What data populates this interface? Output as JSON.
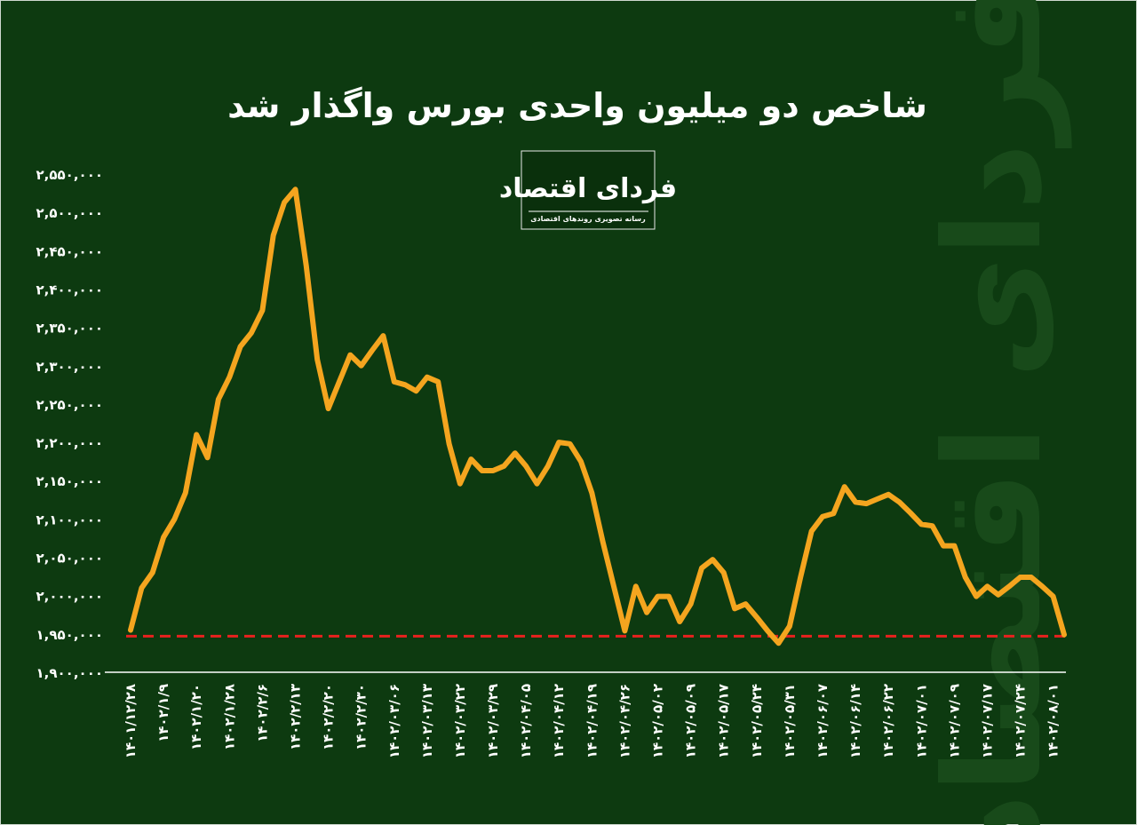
{
  "chart_data": {
    "type": "line",
    "title": "شاخص دو میلیون واحدی بورس واگذار شد",
    "logo": {
      "name": "فردای اقتصاد",
      "tagline": "رسانه تصویری روندهای اقتصادی"
    },
    "categories": [
      "۱۴۰۱/۱۲/۲۸",
      null,
      null,
      "۱۴۰۲/۱/۹",
      null,
      null,
      "۱۴۰۲/۱/۲۰",
      null,
      null,
      "۱۴۰۲/۱/۲۸",
      null,
      null,
      "۱۴۰۲/۲/۶",
      null,
      null,
      "۱۴۰۲/۲/۱۳",
      null,
      null,
      "۱۴۰۲/۲/۲۰",
      null,
      null,
      "۱۴۰۲/۲/۳۰",
      null,
      null,
      "۱۴۰۲/۰۳/۰۶",
      null,
      null,
      "۱۴۰۲/۰۳/۱۳",
      null,
      null,
      "۱۴۰۲/۰۳/۲۲",
      null,
      null,
      "۱۴۰۲/۰۳/۲۹",
      null,
      null,
      "۱۴۰۲/۰۴/۰۵",
      null,
      null,
      "۱۴۰۲/۰۴/۱۲",
      null,
      null,
      "۱۴۰۲/۰۴/۱۹",
      null,
      null,
      "۱۴۰۲/۰۴/۲۶",
      null,
      null,
      "۱۴۰۲/۰۵/۰۲",
      null,
      null,
      "۱۴۰۲/۰۵/۰۹",
      null,
      null,
      "۱۴۰۲/۰۵/۱۷",
      null,
      null,
      "۱۴۰۲/۰۵/۲۴",
      null,
      null,
      "۱۴۰۲/۰۵/۳۱",
      null,
      null,
      "۱۴۰۲/۰۶/۰۷",
      null,
      null,
      "۱۴۰۲/۰۶/۱۴",
      null,
      null,
      "۱۴۰۲/۰۶/۲۲",
      null,
      null,
      "۱۴۰۲/۰۷/۰۱",
      null,
      null,
      "۱۴۰۲/۰۷/۰۹",
      null,
      null,
      "۱۴۰۲/۰۷/۱۷",
      null,
      null,
      "۱۴۰۲/۰۷/۲۴",
      null,
      null,
      "۱۴۰۲/۰۸/۰۱",
      null
    ],
    "values": [
      1955000,
      2010000,
      2030000,
      2076000,
      2100000,
      2134000,
      2210000,
      2180000,
      2256000,
      2285000,
      2325000,
      2343000,
      2372000,
      2470000,
      2513000,
      2530000,
      2430000,
      2308000,
      2244000,
      2279000,
      2314000,
      2300000,
      2320000,
      2339000,
      2279000,
      2275000,
      2267000,
      2285000,
      2279000,
      2198000,
      2146000,
      2178000,
      2163000,
      2163000,
      2169000,
      2186000,
      2169000,
      2146000,
      2169000,
      2200000,
      2198000,
      2175000,
      2134000,
      2070000,
      2012000,
      1954000,
      2012000,
      1978000,
      1999000,
      1999000,
      1966000,
      1989000,
      2036000,
      2047000,
      2030000,
      1983000,
      1989000,
      1972000,
      1954000,
      1938000,
      1960000,
      2024000,
      2084000,
      2103000,
      2107000,
      2142000,
      2122000,
      2120000,
      2126000,
      2132000,
      2122000,
      2108000,
      2093000,
      2091000,
      2065000,
      2065000,
      2024000,
      1999000,
      2012000,
      2001000,
      2012000,
      2024000,
      2024000,
      2012000,
      1999000,
      1949000
    ],
    "color": "#f4a51f",
    "reference_line": 1947000,
    "reference_color": "#e8211e",
    "ylim": [
      1900000,
      2550000
    ],
    "yticks": [
      {
        "value": 1900000,
        "label": "۱,۹۰۰,۰۰۰"
      },
      {
        "value": 1950000,
        "label": "۱,۹۵۰,۰۰۰"
      },
      {
        "value": 2000000,
        "label": "۲,۰۰۰,۰۰۰"
      },
      {
        "value": 2050000,
        "label": "۲,۰۵۰,۰۰۰"
      },
      {
        "value": 2100000,
        "label": "۲,۱۰۰,۰۰۰"
      },
      {
        "value": 2150000,
        "label": "۲,۱۵۰,۰۰۰"
      },
      {
        "value": 2200000,
        "label": "۲,۲۰۰,۰۰۰"
      },
      {
        "value": 2250000,
        "label": "۲,۲۵۰,۰۰۰"
      },
      {
        "value": 2300000,
        "label": "۲,۳۰۰,۰۰۰"
      },
      {
        "value": 2350000,
        "label": "۲,۳۵۰,۰۰۰"
      },
      {
        "value": 2400000,
        "label": "۲,۴۰۰,۰۰۰"
      },
      {
        "value": 2450000,
        "label": "۲,۴۵۰,۰۰۰"
      },
      {
        "value": 2500000,
        "label": "۲,۵۰۰,۰۰۰"
      },
      {
        "value": 2550000,
        "label": "۲,۵۵۰,۰۰۰"
      }
    ],
    "grid": false
  }
}
